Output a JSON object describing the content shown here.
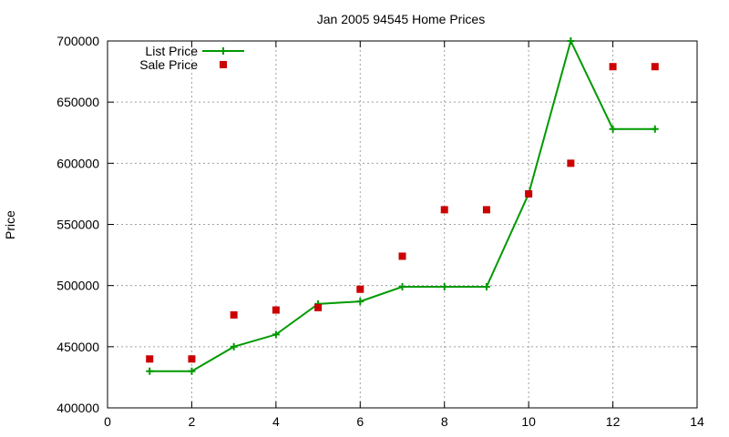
{
  "chart_data": {
    "type": "line",
    "title": "Jan 2005 94545 Home Prices",
    "ylabel": "Price",
    "xlabel": "",
    "xlim": [
      0,
      14
    ],
    "ylim": [
      400000,
      700000
    ],
    "xticks": [
      0,
      2,
      4,
      6,
      8,
      10,
      12,
      14
    ],
    "yticks": [
      400000,
      450000,
      500000,
      550000,
      600000,
      650000,
      700000
    ],
    "grid": true,
    "legend_position": "top-left",
    "series": [
      {
        "name": "List Price",
        "style": "line+cross",
        "color": "#009900",
        "x": [
          1,
          2,
          3,
          4,
          5,
          6,
          7,
          8,
          9,
          10,
          11,
          12,
          13
        ],
        "y": [
          430000,
          430000,
          450000,
          460000,
          485000,
          487000,
          499000,
          499000,
          499000,
          575000,
          700000,
          628000,
          628000
        ]
      },
      {
        "name": "Sale Price",
        "style": "square",
        "color": "#cc0000",
        "x": [
          1,
          2,
          3,
          4,
          5,
          6,
          7,
          8,
          9,
          10,
          11,
          12,
          13
        ],
        "y": [
          440000,
          440000,
          476000,
          480000,
          482000,
          497000,
          524000,
          562000,
          562000,
          575000,
          600000,
          679000,
          679000
        ]
      }
    ]
  }
}
